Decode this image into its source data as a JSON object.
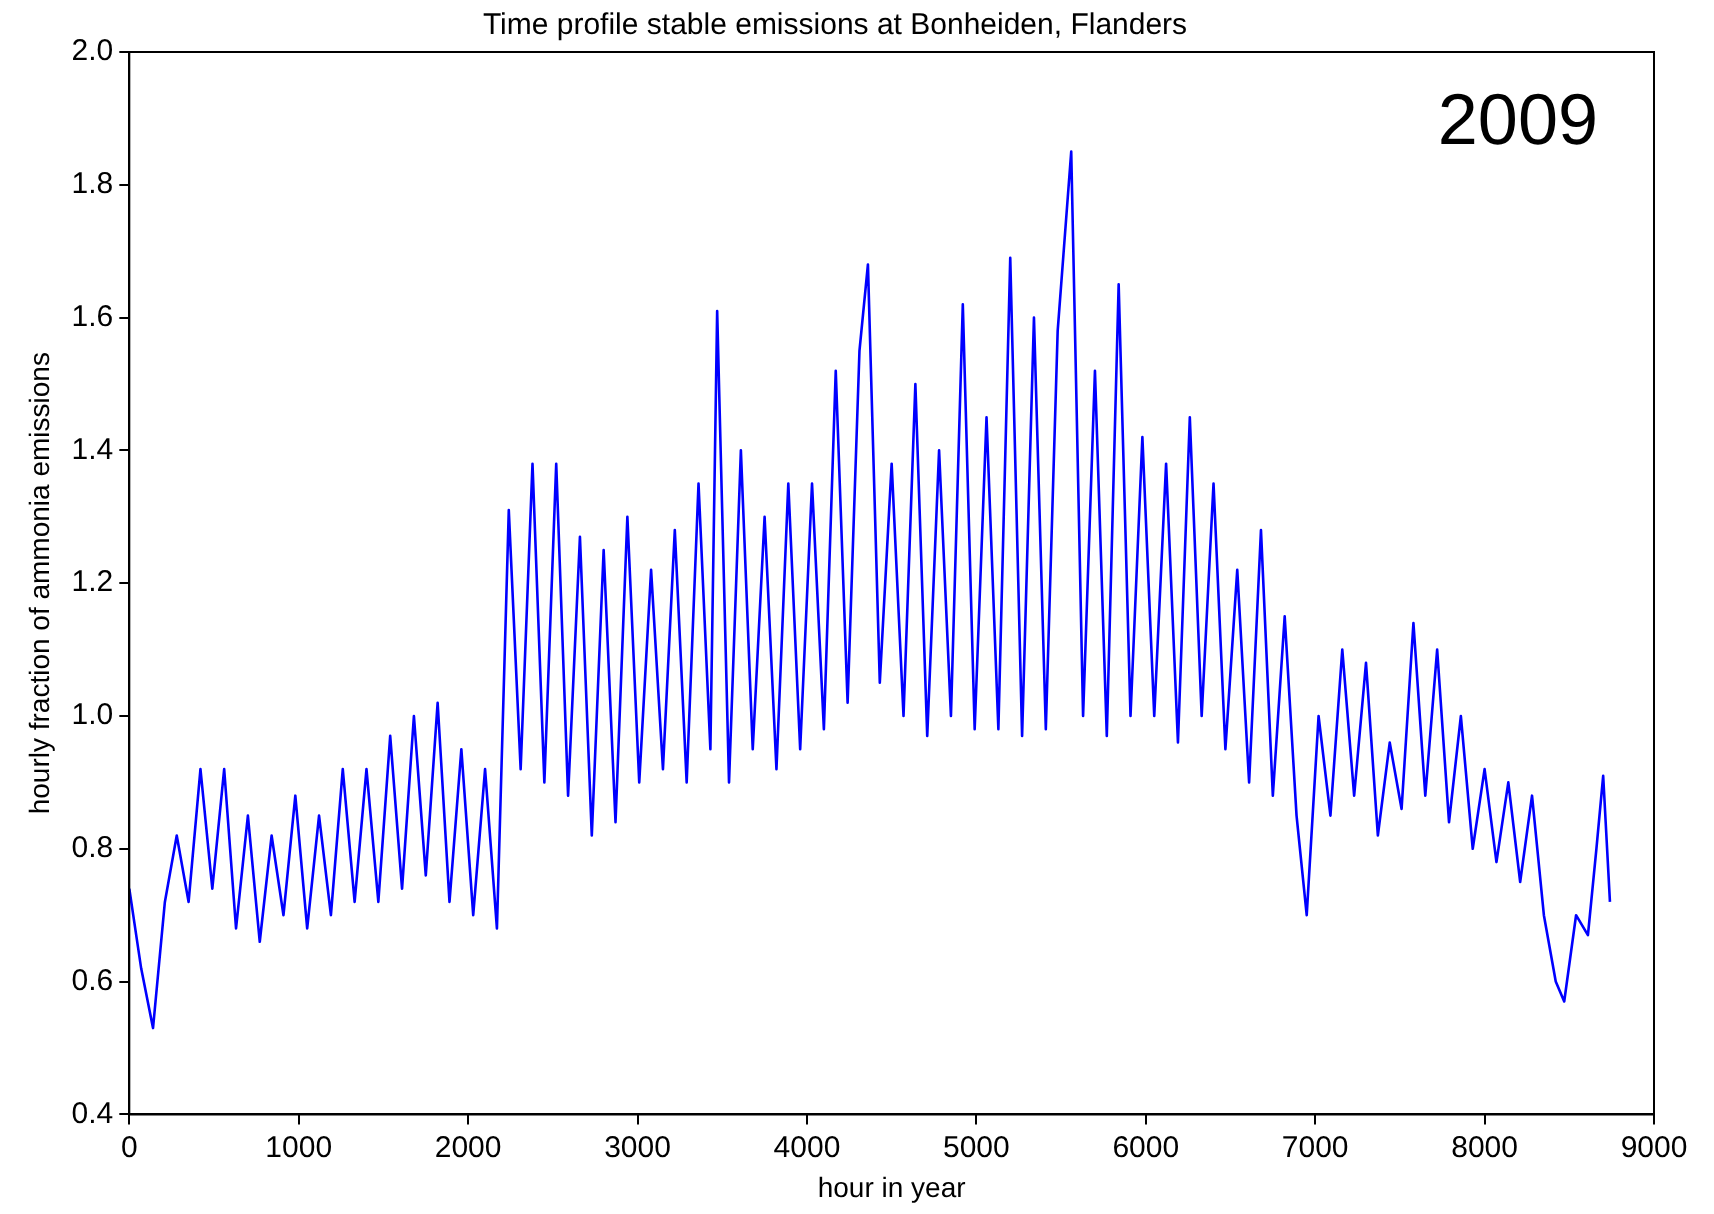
{
  "chart_data": {
    "type": "line",
    "title": "Time profile stable emissions at Bonheiden, Flanders",
    "xlabel": "hour in year",
    "ylabel": "hourly fraction of ammonia emissions",
    "annotations": [
      "2009"
    ],
    "x": [
      0,
      70,
      140,
      210,
      280,
      350,
      420,
      490,
      560,
      630,
      700,
      770,
      840,
      910,
      980,
      1050,
      1120,
      1190,
      1260,
      1330,
      1400,
      1470,
      1540,
      1610,
      1680,
      1750,
      1820,
      1890,
      1960,
      2030,
      2100,
      2170,
      2240,
      2310,
      2380,
      2450,
      2520,
      2590,
      2660,
      2730,
      2800,
      2870,
      2940,
      3010,
      3080,
      3150,
      3220,
      3290,
      3360,
      3430,
      3470,
      3540,
      3610,
      3680,
      3750,
      3820,
      3890,
      3960,
      4030,
      4100,
      4170,
      4240,
      4310,
      4360,
      4430,
      4500,
      4570,
      4640,
      4710,
      4780,
      4850,
      4920,
      4990,
      5060,
      5130,
      5200,
      5270,
      5340,
      5410,
      5480,
      5560,
      5630,
      5700,
      5770,
      5840,
      5910,
      5980,
      6050,
      6120,
      6190,
      6260,
      6330,
      6400,
      6470,
      6540,
      6610,
      6680,
      6750,
      6820,
      6890,
      6950,
      7020,
      7090,
      7160,
      7230,
      7300,
      7370,
      7440,
      7510,
      7580,
      7650,
      7720,
      7790,
      7860,
      7930,
      8000,
      8070,
      8140,
      8210,
      8280,
      8350,
      8420,
      8470,
      8540,
      8610,
      8660,
      8700,
      8740
    ],
    "series": [
      {
        "color": "#0000ff",
        "values": [
          0.74,
          0.62,
          0.53,
          0.72,
          0.82,
          0.72,
          0.92,
          0.74,
          0.92,
          0.68,
          0.85,
          0.66,
          0.82,
          0.7,
          0.88,
          0.68,
          0.85,
          0.7,
          0.92,
          0.72,
          0.92,
          0.72,
          0.97,
          0.74,
          1.0,
          0.76,
          1.02,
          0.72,
          0.95,
          0.7,
          0.92,
          0.68,
          1.31,
          0.92,
          1.38,
          0.9,
          1.38,
          0.88,
          1.27,
          0.82,
          1.25,
          0.84,
          1.3,
          0.9,
          1.22,
          0.92,
          1.28,
          0.9,
          1.35,
          0.95,
          1.61,
          0.9,
          1.4,
          0.95,
          1.3,
          0.92,
          1.35,
          0.95,
          1.35,
          0.98,
          1.52,
          1.02,
          1.55,
          1.68,
          1.05,
          1.38,
          1.0,
          1.5,
          0.97,
          1.4,
          1.0,
          1.62,
          0.98,
          1.45,
          0.98,
          1.69,
          0.97,
          1.6,
          0.98,
          1.58,
          1.85,
          1.0,
          1.52,
          0.97,
          1.65,
          1.0,
          1.42,
          1.0,
          1.38,
          0.96,
          1.45,
          1.0,
          1.35,
          0.95,
          1.22,
          0.9,
          1.28,
          0.88,
          1.15,
          0.85,
          0.7,
          1.0,
          0.85,
          1.1,
          0.88,
          1.08,
          0.82,
          0.96,
          0.86,
          1.14,
          0.88,
          1.1,
          0.84,
          1.0,
          0.8,
          0.92,
          0.78,
          0.9,
          0.75,
          0.88,
          0.7,
          0.6,
          0.57,
          0.7,
          0.67,
          0.8,
          0.91,
          0.72
        ]
      }
    ],
    "xlim": [
      0,
      9000
    ],
    "xticks": [
      0,
      1000,
      2000,
      3000,
      4000,
      5000,
      6000,
      7000,
      8000,
      9000
    ],
    "ylim": [
      0.4,
      2.0
    ],
    "yticks": [
      0.4,
      0.6,
      0.8,
      {
        "value": 1,
        "label": "1.0"
      },
      1.2,
      1.4,
      1.6,
      1.8,
      {
        "value": 2,
        "label": "2.0"
      }
    ],
    "grid": false,
    "legend": false,
    "marker": "none",
    "line_style": "solid"
  }
}
